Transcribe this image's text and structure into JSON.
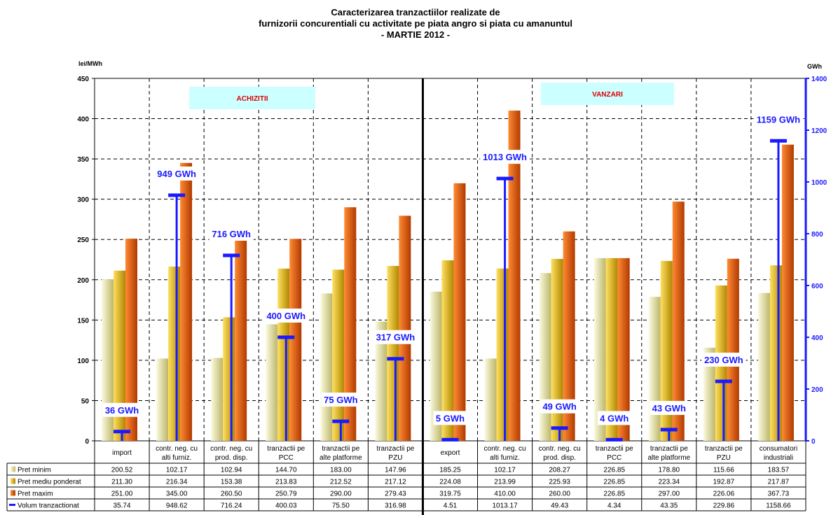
{
  "title_lines": [
    "Caracterizarea tranzactiilor realizate de",
    "furnizorii concurentiali cu activitate pe piata angro si piata cu amanuntul",
    "- MARTIE 2012 -"
  ],
  "chart_data": {
    "type": "bar",
    "categories": [
      [
        "import"
      ],
      [
        "contr. neg. cu",
        "alti furniz."
      ],
      [
        "contr. neg. cu",
        "prod. disp."
      ],
      [
        "tranzactii pe",
        "PCC"
      ],
      [
        "tranzactii pe",
        "alte platforme"
      ],
      [
        "tranzactii pe",
        "PZU"
      ],
      [
        "export"
      ],
      [
        "contr. neg. cu",
        "alti furniz."
      ],
      [
        "contr. neg. cu",
        "prod. disp."
      ],
      [
        "tranzactii pe",
        "PCC"
      ],
      [
        "tranzactii pe",
        "alte platforme"
      ],
      [
        "tranzactii pe",
        "PZU"
      ],
      [
        "consumatori",
        "industriali"
      ]
    ],
    "series": [
      {
        "name": "Pret minim",
        "axis": "left",
        "color": "#e8e4a0",
        "values": [
          200.52,
          102.17,
          102.94,
          144.7,
          183.0,
          147.96,
          185.25,
          102.17,
          208.27,
          226.85,
          178.8,
          115.66,
          183.57
        ],
        "labels": [
          "200.52",
          "102.17",
          "102.94",
          "144.70",
          "183.00",
          "147.96",
          "185.25",
          "102.17",
          "208.27",
          "226.85",
          "178.80",
          "115.66",
          "183.57"
        ]
      },
      {
        "name": "Pret mediu ponderat",
        "axis": "left",
        "color": "#e8b800",
        "values": [
          211.3,
          216.34,
          153.38,
          213.83,
          212.52,
          217.12,
          224.08,
          213.99,
          225.93,
          226.85,
          223.34,
          192.87,
          217.87
        ],
        "labels": [
          "211.30",
          "216.34",
          "153.38",
          "213.83",
          "212.52",
          "217.12",
          "224.08",
          "213.99",
          "225.93",
          "226.85",
          "223.34",
          "192.87",
          "217.87"
        ]
      },
      {
        "name": "Pret maxim",
        "axis": "left",
        "color": "#e05a00",
        "values": [
          251.0,
          345.0,
          260.5,
          250.79,
          290.0,
          279.43,
          319.75,
          410.0,
          260.0,
          226.85,
          297.0,
          226.06,
          367.73
        ],
        "labels": [
          "251.00",
          "345.00",
          "260.50",
          "250.79",
          "290.00",
          "279.43",
          "319.75",
          "410.00",
          "260.00",
          "226.85",
          "297.00",
          "226.06",
          "367.73"
        ]
      },
      {
        "name": "Volum tranzactionat",
        "axis": "right",
        "color": "#1a1aff",
        "values": [
          35.74,
          948.62,
          716.24,
          400.03,
          75.5,
          316.98,
          4.51,
          1013.17,
          49.43,
          4.34,
          43.35,
          229.86,
          1158.66
        ],
        "labels": [
          "35.74",
          "948.62",
          "716.24",
          "400.03",
          "75.50",
          "316.98",
          "4.51",
          "1013.17",
          "49.43",
          "4.34",
          "43.35",
          "229.86",
          "1158.66"
        ]
      }
    ],
    "volume_labels": [
      "36 GWh",
      "949 GWh",
      "716 GWh",
      "400 GWh",
      "75 GWh",
      "317 GWh",
      "5 GWh",
      "1013 GWh",
      "49 GWh",
      "4 GWh",
      "43 GWh",
      "230 GWh",
      "1159 GWh"
    ],
    "ylabel_left": "lei/MWh",
    "ylabel_right": "GWh",
    "ylim_left": [
      0,
      450
    ],
    "yticks_left": [
      "0",
      "50",
      "100",
      "150",
      "200",
      "250",
      "300",
      "350",
      "400",
      "450"
    ],
    "ylim_right": [
      0,
      1400
    ],
    "yticks_right": [
      "0",
      "200",
      "400",
      "600",
      "800",
      "1000",
      "1200",
      "1400"
    ],
    "annotations": [
      {
        "text": "ACHIZITII",
        "color": "#e00000",
        "bg": "#ccffff"
      },
      {
        "text": "VANZARI",
        "color": "#e00000",
        "bg": "#ccffff"
      }
    ],
    "grid": true,
    "legend": "table-bottom"
  }
}
